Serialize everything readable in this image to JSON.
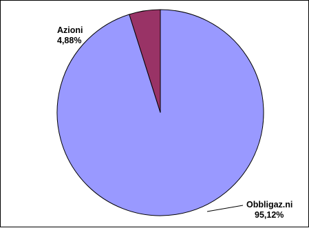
{
  "chart_data": {
    "type": "pie",
    "title": "",
    "slices": [
      {
        "name": "Azioni",
        "label": "Azioni",
        "value_label": "4,88%",
        "value": 4.88,
        "color": "#993366"
      },
      {
        "name": "Obbligaz.ni",
        "label": "Obbligaz.ni",
        "value_label": "95,12%",
        "value": 95.12,
        "color": "#9999ff"
      }
    ],
    "start_angle_deg": 0,
    "direction": "counterclockwise",
    "legend": "none"
  }
}
